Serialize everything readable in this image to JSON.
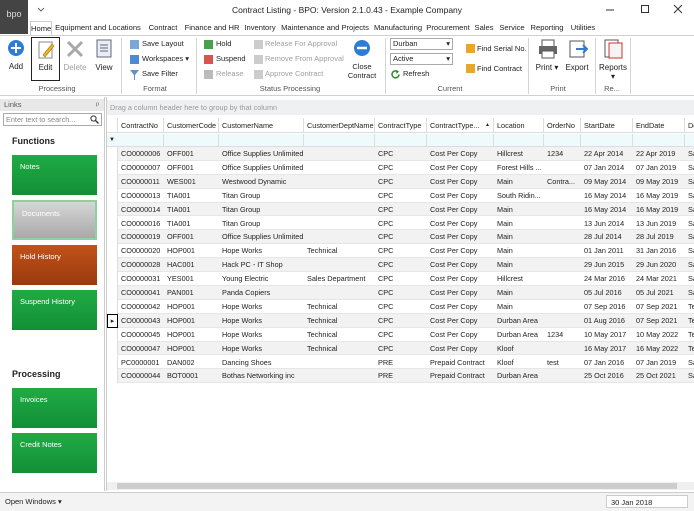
{
  "window": {
    "logo": "bpo",
    "title": "Contract Listing - BPO: Version 2.1.0.43 - Example Company"
  },
  "menu_tabs": [
    "Home",
    "Equipment and Locations",
    "Contract",
    "Finance and HR",
    "Inventory",
    "Maintenance and Projects",
    "Manufacturing",
    "Procurement",
    "Sales",
    "Service",
    "Reporting",
    "Utilities"
  ],
  "ribbon": {
    "processing": {
      "label": "Processing",
      "buttons": [
        "Add",
        "Edit",
        "Delete",
        "View"
      ]
    },
    "format": {
      "label": "Format",
      "buttons": [
        "Save Layout",
        "Workspaces",
        "Save Filter"
      ]
    },
    "status_processing": {
      "label": "Status Processing",
      "buttons": [
        "Hold",
        "Suspend",
        "Release",
        "Release For Approval",
        "Remove From Approval",
        "Approve Contract",
        "Close Contract"
      ]
    },
    "current": {
      "label": "Current",
      "branch": "Durban",
      "status": "Active",
      "buttons": [
        "Refresh",
        "Find Serial No.",
        "Find Contract"
      ]
    },
    "print": {
      "label": "Print",
      "buttons": [
        "Print",
        "Export"
      ]
    },
    "reports": {
      "label": "Re...",
      "buttons": [
        "Reports"
      ]
    }
  },
  "links_panel": {
    "title": "Links",
    "search_placeholder": "Enter text to search...",
    "sections": [
      {
        "title": "Functions",
        "tiles": [
          "Notes",
          "Documents",
          "Hold History",
          "Suspend History"
        ]
      },
      {
        "title": "Processing",
        "tiles": [
          "Invoices",
          "Credit Notes"
        ]
      }
    ]
  },
  "grid": {
    "group_hint": "Drag a column header here to group by that column",
    "columns": [
      "ContractNo",
      "CustomerCode",
      "CustomerName",
      "CustomerDeptName",
      "ContractType",
      "ContractType...",
      "Location",
      "OrderNo",
      "StartDate",
      "EndDate",
      "De"
    ],
    "selected_row": 12,
    "rows": [
      [
        "CO0000006",
        "OFF001",
        "Office Supplies Unlimited",
        null,
        "CPC",
        "Cost Per Copy",
        "Hillcrest",
        "1234",
        "22 Apr 2014",
        "22 Apr 2019",
        "Sa"
      ],
      [
        "CO0000007",
        "OFF001",
        "Office Supplies Unlimited",
        null,
        "CPC",
        "Cost Per Copy",
        "Forest Hills ...",
        null,
        "07 Jan 2014",
        "07 Jan 2019",
        "Sa"
      ],
      [
        "CO0000011",
        "WES001",
        "Westwood Dynamic",
        null,
        "CPC",
        "Cost Per Copy",
        "Main",
        "Contra...",
        "09 May 2014",
        "09 May 2019",
        "Sa"
      ],
      [
        "CO0000013",
        "TIA001",
        "Titan Group",
        null,
        "CPC",
        "Cost Per Copy",
        "South Ridin...",
        null,
        "16 May 2014",
        "16 May 2019",
        "Sa"
      ],
      [
        "CO0000014",
        "TIA001",
        "Titan Group",
        null,
        "CPC",
        "Cost Per Copy",
        "Main",
        null,
        "16 May 2014",
        "16 May 2019",
        "Sa"
      ],
      [
        "CO0000016",
        "TIA001",
        "Titan Group",
        null,
        "CPC",
        "Cost Per Copy",
        "Main",
        null,
        "13 Jun 2014",
        "13 Jun 2019",
        "Sa"
      ],
      [
        "CO0000019",
        "OFF001",
        "Office Supplies Unlimited",
        null,
        "CPC",
        "Cost Per Copy",
        "Main",
        null,
        "28 Jul 2014",
        "28 Jul 2019",
        "Sa"
      ],
      [
        "CO0000020",
        "HOP001",
        "Hope Works",
        "Technical",
        "CPC",
        "Cost Per Copy",
        "Main",
        null,
        "01 Jan 2011",
        "31 Jan 2016",
        "Sa"
      ],
      [
        "CO0000028",
        "HAC001",
        "Hack PC - IT Shop",
        null,
        "CPC",
        "Cost Per Copy",
        "Main",
        null,
        "29 Jun 2015",
        "29 Jun 2020",
        "Sa"
      ],
      [
        "CO0000031",
        "YES001",
        "Young Electric",
        "Sales Department",
        "CPC",
        "Cost Per Copy",
        "Hillcrest",
        null,
        "24 Mar 2016",
        "24 Mar 2021",
        "Sa"
      ],
      [
        "CO0000041",
        "PAN001",
        "Panda Copiers",
        null,
        "CPC",
        "Cost Per Copy",
        "Main",
        null,
        "05 Jul 2016",
        "05 Jul 2021",
        "Sa"
      ],
      [
        "CO0000042",
        "HOP001",
        "Hope Works",
        "Technical",
        "CPC",
        "Cost Per Copy",
        "Main",
        null,
        "07 Sep 2016",
        "07 Sep 2021",
        "Te"
      ],
      [
        "CO0000043",
        "HOP001",
        "Hope Works",
        "Technical",
        "CPC",
        "Cost Per Copy",
        "Durban Area",
        null,
        "01 Aug 2016",
        "07 Sep 2021",
        "Te"
      ],
      [
        "CO0000045",
        "HOP001",
        "Hope Works",
        "Technical",
        "CPC",
        "Cost Per Copy",
        "Durban Area",
        "1234",
        "10 May 2017",
        "10 May 2022",
        "Te"
      ],
      [
        "CO0000047",
        "HOP001",
        "Hope Works",
        "Technical",
        "CPC",
        "Cost Per Copy",
        "Kloof",
        null,
        "16 May 2017",
        "16 May 2022",
        "Te"
      ],
      [
        "PC0000001",
        "DAN002",
        "Dancing Shoes",
        null,
        "PRE",
        "Prepaid Contract",
        "Kloof",
        "test",
        "07 Jan 2016",
        "07 Jan 2019",
        "Sa"
      ],
      [
        "CO0000044",
        "BOT0001",
        "Bothas Networking inc",
        null,
        "PRE",
        "Prepaid Contract",
        "Durban Area",
        null,
        "25 Oct 2016",
        "25 Oct 2021",
        "Sa"
      ]
    ]
  },
  "status_bar": {
    "open_windows": "Open Windows",
    "date": "30 Jan 2018"
  }
}
